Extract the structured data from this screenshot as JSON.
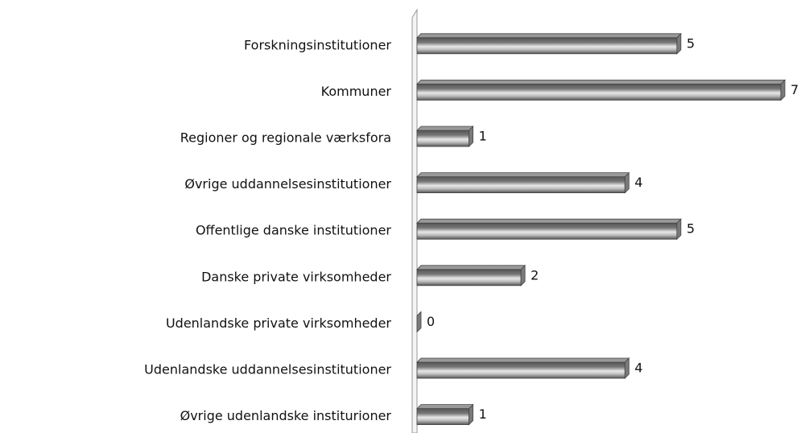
{
  "chart_data": {
    "type": "bar",
    "orientation": "horizontal",
    "categories": [
      "Forskningsinstitutioner",
      "Kommuner",
      "Regioner og regionale værksfora",
      "Øvrige uddannelsesinstitutioner",
      "Offentlige danske institutioner",
      "Danske private virksomheder",
      "Udenlandske private virksomheder",
      "Udenlandske uddannelsesinstitutioner",
      "Øvrige udenlandske institurioner"
    ],
    "values": [
      5,
      7,
      1,
      4,
      5,
      2,
      0,
      4,
      1
    ],
    "color": "#7a7a7a",
    "xlim": [
      0,
      7
    ]
  }
}
